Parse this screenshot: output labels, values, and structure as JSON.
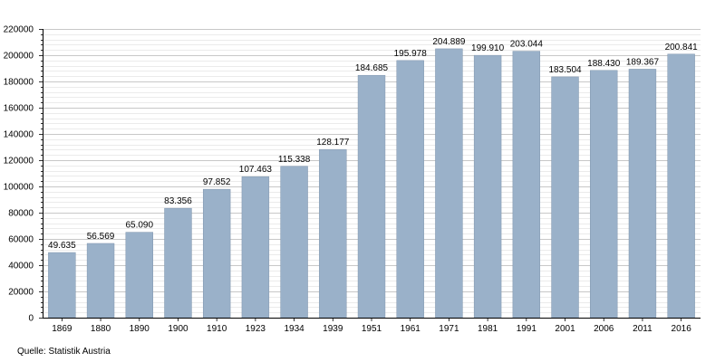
{
  "chart_data": {
    "type": "bar",
    "categories": [
      "1869",
      "1880",
      "1890",
      "1900",
      "1910",
      "1923",
      "1934",
      "1939",
      "1951",
      "1961",
      "1971",
      "1981",
      "1991",
      "2001",
      "2006",
      "2011",
      "2016"
    ],
    "values": [
      49635,
      56569,
      65090,
      83356,
      97852,
      107463,
      115338,
      128177,
      184685,
      195978,
      204889,
      199910,
      203044,
      183504,
      188430,
      189367,
      200841
    ],
    "value_labels": [
      "49.635",
      "56.569",
      "65.090",
      "83.356",
      "97.852",
      "107.463",
      "115.338",
      "128.177",
      "184.685",
      "195.978",
      "204.889",
      "199.910",
      "203.044",
      "183.504",
      "188.430",
      "189.367",
      "200.841"
    ],
    "title": "",
    "xlabel": "",
    "ylabel": "",
    "ylim": [
      0,
      220000
    ],
    "yticks": [
      0,
      20000,
      40000,
      60000,
      80000,
      100000,
      120000,
      140000,
      160000,
      180000,
      200000,
      220000
    ],
    "grid": true,
    "legend": "none",
    "bar_color": "#9ab1c9",
    "bar_edge_color": "#7f95ad",
    "grid_color": "#c8c8c8"
  },
  "source_label": "Quelle: Statistik Austria"
}
